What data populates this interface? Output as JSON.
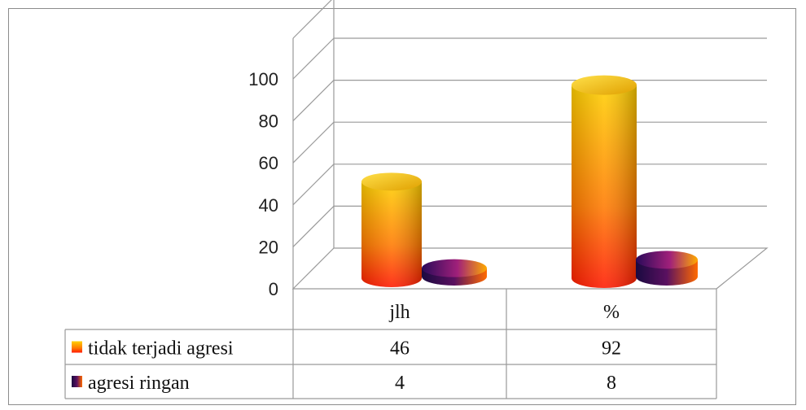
{
  "chart_data": {
    "type": "bar",
    "style": "3d-cylinder",
    "categories": [
      "jlh",
      "%"
    ],
    "series": [
      {
        "name": "tidak terjadi agresi",
        "values": [
          46,
          92
        ],
        "color_top": "#ffd800",
        "color_bottom": "#ff2200"
      },
      {
        "name": "agresi ringan",
        "values": [
          4,
          8
        ],
        "color_top": "#ffaa00",
        "color_bottom": "#2a0a5a"
      }
    ],
    "yticks": [
      0,
      20,
      40,
      60,
      80,
      100
    ],
    "ylim": [
      0,
      100
    ],
    "grid": true,
    "legend": "data-table"
  }
}
